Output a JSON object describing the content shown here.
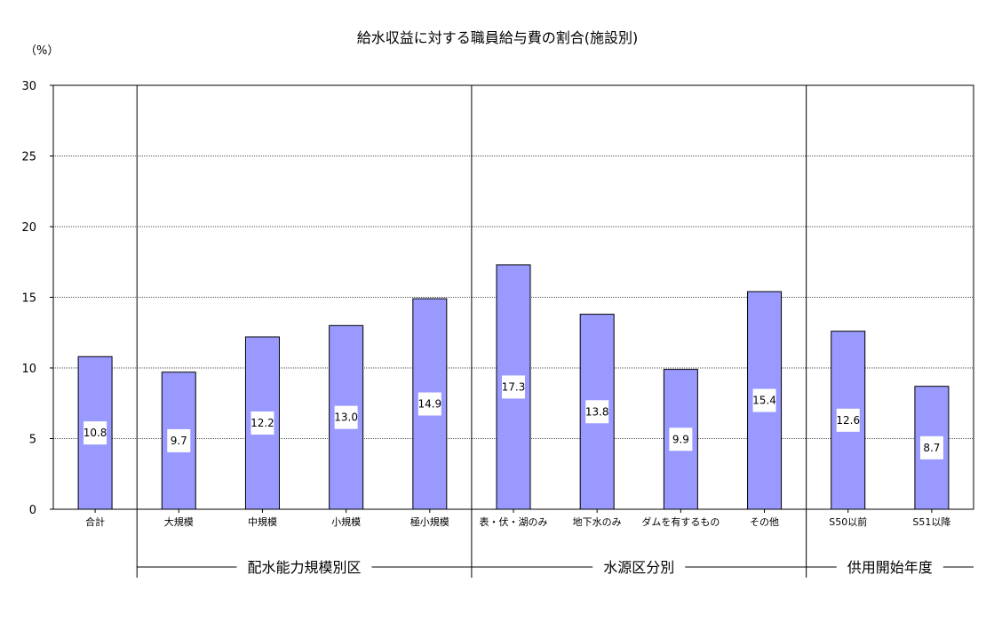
{
  "chart_data": {
    "type": "bar",
    "title": "給水収益に対する職員給与費の割合(施設別)",
    "unit_label": "（%）",
    "ylim": [
      0,
      30
    ],
    "yticks": [
      0,
      5,
      10,
      15,
      20,
      25,
      30
    ],
    "grid": true,
    "bar_color": "#9999ff",
    "categories": [
      "合計",
      "大規模",
      "中規模",
      "小規模",
      "極小規模",
      "表・伏・湖のみ",
      "地下水のみ",
      "ダムを有するもの",
      "その他",
      "S50以前",
      "S51以降"
    ],
    "values": [
      10.8,
      9.7,
      12.2,
      13.0,
      14.9,
      17.3,
      13.8,
      9.9,
      15.4,
      12.6,
      8.7
    ],
    "value_labels": [
      "10.8",
      "9.7",
      "12.2",
      "13.0",
      "14.9",
      "17.3",
      "13.8",
      "9.9",
      "15.4",
      "12.6",
      "8.7"
    ],
    "groups": [
      {
        "label": "配水能力規模別区",
        "start": 1,
        "end": 4
      },
      {
        "label": "水源区分別",
        "start": 5,
        "end": 8
      },
      {
        "label": "供用開始年度",
        "start": 9,
        "end": 10
      }
    ]
  }
}
